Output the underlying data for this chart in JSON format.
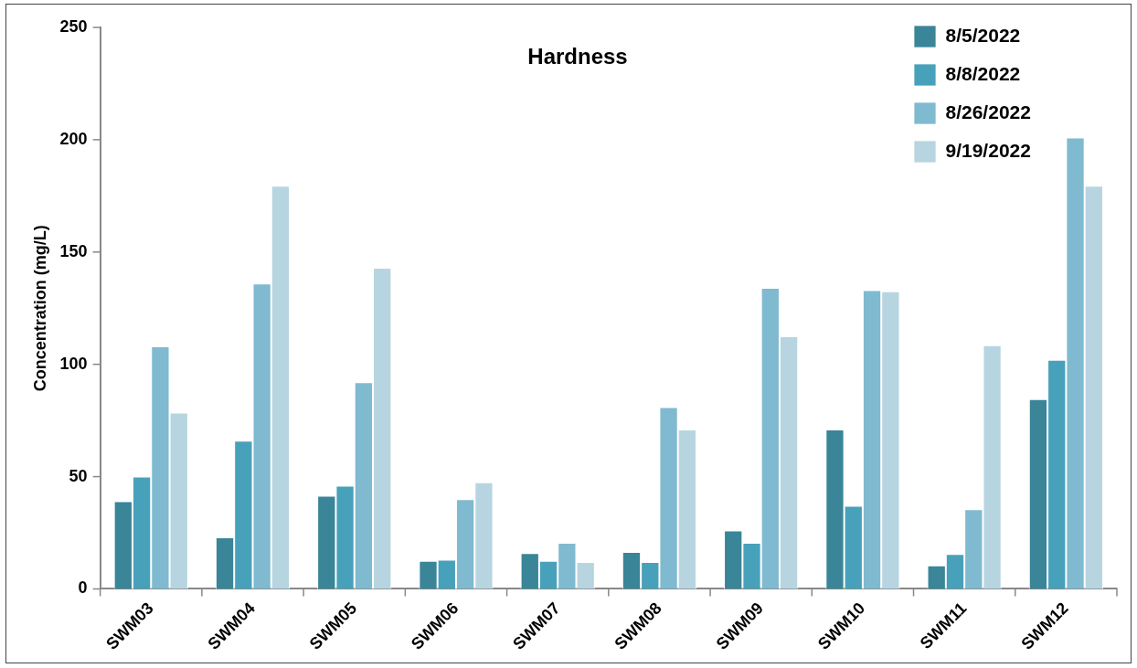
{
  "chart_data": {
    "type": "bar",
    "title": "Hardness",
    "ylabel": "Concentration (mg/L)",
    "categories": [
      "SWM03",
      "SWM04",
      "SWM05",
      "SWM06",
      "SWM07",
      "SWM08",
      "SWM09",
      "SWM10",
      "SWM11",
      "SWM12"
    ],
    "series": [
      {
        "name": "8/5/2022",
        "color": "#3a8598",
        "values": [
          39,
          23,
          41.5,
          12.5,
          16,
          16.5,
          26,
          71,
          10.5,
          84.5
        ]
      },
      {
        "name": "8/8/2022",
        "color": "#48a1ba",
        "values": [
          50,
          66,
          46,
          13,
          12.5,
          12,
          20.5,
          37,
          15.5,
          102
        ]
      },
      {
        "name": "8/26/2022",
        "color": "#7fbad0",
        "values": [
          108,
          136,
          92,
          40,
          20.5,
          81,
          134,
          133,
          35.5,
          201
        ]
      },
      {
        "name": "9/19/2022",
        "color": "#b7d5e0",
        "values": [
          78.5,
          179.5,
          143,
          47.5,
          12,
          71,
          112.5,
          132.5,
          108.5,
          179.5
        ]
      }
    ],
    "ylim": [
      0,
      250
    ],
    "yticks": [
      0,
      50,
      100,
      150,
      200,
      250
    ],
    "grid": false,
    "legend": "top right"
  }
}
